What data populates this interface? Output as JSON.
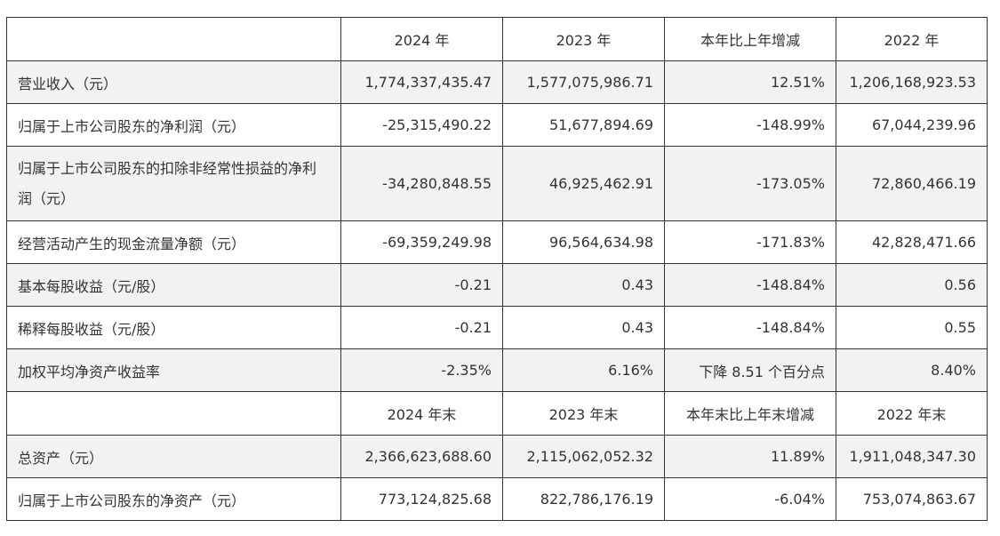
{
  "header1": [
    "",
    "2024 年",
    "2023 年",
    "本年比上年增减",
    "2022 年"
  ],
  "rows1": [
    {
      "label": "营业收入（元）",
      "v2024": "1,774,337,435.47",
      "v2023": "1,577,075,986.71",
      "change": "12.51%",
      "v2022": "1,206,168,923.53"
    },
    {
      "label": "归属于上市公司股东的净利润（元）",
      "v2024": "-25,315,490.22",
      "v2023": "51,677,894.69",
      "change": "-148.99%",
      "v2022": "67,044,239.96"
    },
    {
      "label": "归属于上市公司股东的扣除非经常性损益的净利润（元）",
      "v2024": "-34,280,848.55",
      "v2023": "46,925,462.91",
      "change": "-173.05%",
      "v2022": "72,860,466.19"
    },
    {
      "label": "经营活动产生的现金流量净额（元）",
      "v2024": "-69,359,249.98",
      "v2023": "96,564,634.98",
      "change": "-171.83%",
      "v2022": "42,828,471.66"
    },
    {
      "label": "基本每股收益（元/股）",
      "v2024": "-0.21",
      "v2023": "0.43",
      "change": "-148.84%",
      "v2022": "0.56"
    },
    {
      "label": "稀释每股收益（元/股）",
      "v2024": "-0.21",
      "v2023": "0.43",
      "change": "-148.84%",
      "v2022": "0.55"
    },
    {
      "label": "加权平均净资产收益率",
      "v2024": "-2.35%",
      "v2023": "6.16%",
      "change": "下降 8.51 个百分点",
      "v2022": "8.40%"
    }
  ],
  "header2": [
    "",
    "2024 年末",
    "2023 年末",
    "本年末比上年末增减",
    "2022 年末"
  ],
  "rows2": [
    {
      "label": "总资产（元）",
      "v2024": "2,366,623,688.60",
      "v2023": "2,115,062,052.32",
      "change": "11.89%",
      "v2022": "1,911,048,347.30"
    },
    {
      "label": "归属于上市公司股东的净资产（元）",
      "v2024": "773,124,825.68",
      "v2023": "822,786,176.19",
      "change": "-6.04%",
      "v2022": "753,074,863.67"
    }
  ]
}
